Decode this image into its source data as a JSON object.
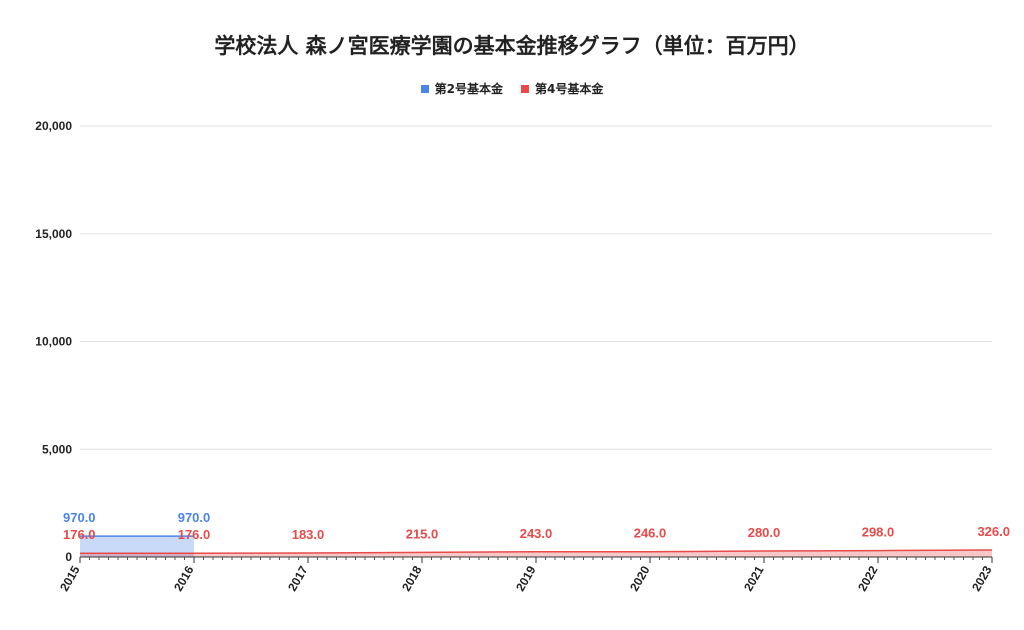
{
  "chart_data": {
    "type": "area",
    "title": "学校法人 森ノ宮医療学園の基本金推移グラフ（単位：百万円）",
    "xlabel": "",
    "ylabel": "",
    "x": [
      "2015",
      "2016",
      "2017",
      "2018",
      "2019",
      "2020",
      "2021",
      "2022",
      "2023"
    ],
    "ylim": [
      0,
      20000
    ],
    "yticks": [
      0,
      5000,
      10000,
      15000,
      20000
    ],
    "ytick_labels": [
      "0",
      "5,000",
      "10,000",
      "15,000",
      "20,000"
    ],
    "grid": true,
    "legend_position": "top",
    "series": [
      {
        "name": "第2号基本金",
        "color": "#4a86e8",
        "values": [
          970.0,
          970.0,
          null,
          null,
          null,
          null,
          null,
          null,
          null
        ],
        "labels": [
          "970.0",
          "970.0",
          "",
          "",
          "",
          "",
          "",
          "",
          ""
        ]
      },
      {
        "name": "第4号基本金",
        "color": "#e84a4a",
        "values": [
          176.0,
          176.0,
          183.0,
          215.0,
          243.0,
          246.0,
          280.0,
          298.0,
          326.0
        ],
        "labels": [
          "176.0",
          "176.0",
          "183.0",
          "215.0",
          "243.0",
          "246.0",
          "280.0",
          "298.0",
          "326.0"
        ]
      }
    ]
  }
}
